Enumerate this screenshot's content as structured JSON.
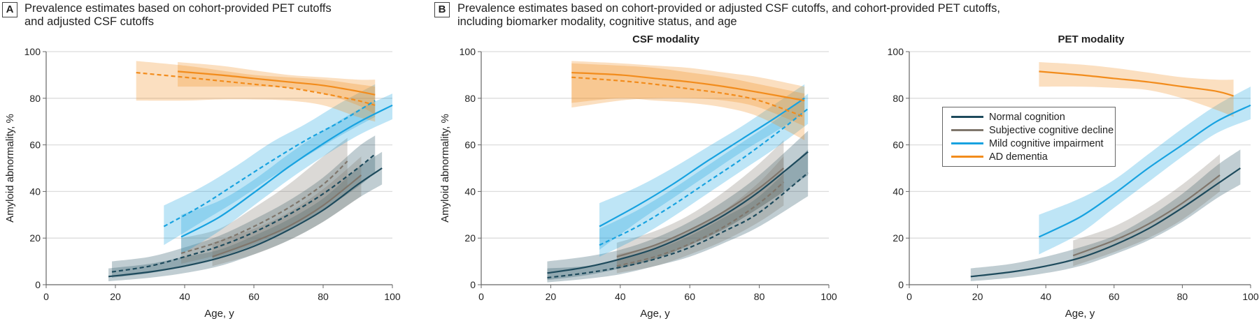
{
  "panels": {
    "a": {
      "letter": "A",
      "title_line1": "Prevalence estimates based on cohort-provided PET cutoffs",
      "title_line2": "and adjusted CSF cutoffs"
    },
    "b": {
      "letter": "B",
      "title_line1": "Prevalence estimates based on cohort-provided or adjusted CSF cutoffs, and cohort-provided PET cutoffs,",
      "title_line2": "including biomarker modality, cognitive status, and age",
      "csf_title": "CSF modality",
      "pet_title": "PET modality"
    }
  },
  "legend": [
    {
      "label": "Normal cognition",
      "color": "#1d4a5c"
    },
    {
      "label": "Subjective cognitive decline",
      "color": "#7f766c"
    },
    {
      "label": "Mild cognitive impairment",
      "color": "#17a2e0"
    },
    {
      "label": "AD dementia",
      "color": "#f28c1c"
    }
  ],
  "chart_data": [
    {
      "type": "line",
      "id": "A",
      "title": "",
      "xlabel": "Age, y",
      "ylabel": "Amyloid abnormality, %",
      "xlim": [
        0,
        100
      ],
      "ylim": [
        0,
        100
      ],
      "xticks": [
        "0",
        "20",
        "40",
        "60",
        "80",
        "100"
      ],
      "yticks": [
        "0",
        "20",
        "40",
        "60",
        "80",
        "100"
      ],
      "grid": true,
      "series": [
        {
          "name": "Normal cognition",
          "style": "solid",
          "x": [
            18,
            30,
            40,
            50,
            60,
            70,
            80,
            90,
            97
          ],
          "y": [
            3.5,
            5.5,
            8,
            11.5,
            16.5,
            23.5,
            32,
            43,
            50
          ],
          "lo": [
            1.5,
            3,
            5,
            8,
            13,
            19,
            27,
            37,
            43
          ],
          "hi": [
            7,
            9,
            12,
            15,
            21,
            28,
            37,
            50,
            57
          ]
        },
        {
          "name": "Normal cognition",
          "style": "dashed",
          "x": [
            19,
            30,
            40,
            50,
            60,
            70,
            80,
            90,
            95
          ],
          "y": [
            5.5,
            8,
            12,
            16.5,
            22.5,
            30,
            39,
            50,
            56
          ],
          "lo": [
            3,
            5,
            8,
            12,
            17,
            24,
            32,
            42,
            48
          ],
          "hi": [
            10,
            12,
            16,
            21,
            28,
            36,
            46,
            59,
            64
          ]
        },
        {
          "name": "Subjective cognitive decline",
          "style": "solid",
          "x": [
            48,
            60,
            70,
            80,
            91
          ],
          "y": [
            12,
            18.5,
            25,
            34,
            47
          ],
          "lo": [
            8,
            13,
            19,
            27,
            38
          ],
          "hi": [
            18,
            24,
            31,
            41,
            55
          ]
        },
        {
          "name": "Subjective cognitive decline",
          "style": "dashed",
          "x": [
            39,
            50,
            60,
            70,
            80,
            87
          ],
          "y": [
            13.5,
            18.5,
            25,
            33,
            43,
            53
          ],
          "lo": [
            9,
            13,
            18,
            25,
            34,
            42
          ],
          "hi": [
            20,
            24,
            33,
            43,
            55,
            63
          ]
        },
        {
          "name": "Mild cognitive impairment",
          "style": "solid",
          "x": [
            39,
            50,
            60,
            70,
            80,
            90,
            100
          ],
          "y": [
            20.5,
            29,
            39.5,
            50.5,
            60.5,
            69.5,
            77
          ],
          "lo": [
            13,
            23,
            34,
            45,
            55,
            64,
            71
          ],
          "hi": [
            30,
            36,
            45,
            56,
            66,
            75,
            82
          ]
        },
        {
          "name": "Mild cognitive impairment",
          "style": "dashed",
          "x": [
            34,
            45,
            55,
            65,
            75,
            85,
            95
          ],
          "y": [
            25,
            34,
            43.5,
            53,
            62,
            70,
            79
          ],
          "lo": [
            17,
            27,
            36,
            46,
            55,
            64,
            72
          ],
          "hi": [
            34,
            42,
            51,
            61,
            69,
            78,
            86
          ]
        },
        {
          "name": "AD dementia",
          "style": "solid",
          "x": [
            38,
            50,
            60,
            70,
            80,
            90,
            95
          ],
          "y": [
            91.5,
            90,
            88.5,
            87,
            85.5,
            83,
            81.5
          ],
          "lo": [
            85,
            85,
            85,
            84.5,
            82,
            77,
            73
          ],
          "hi": [
            95.5,
            94,
            92,
            90,
            89,
            88,
            88
          ]
        },
        {
          "name": "AD dementia",
          "style": "dashed",
          "x": [
            26,
            40,
            50,
            60,
            70,
            80,
            90,
            95
          ],
          "y": [
            91,
            89,
            87.5,
            86,
            84.5,
            82,
            79,
            77
          ],
          "lo": [
            79,
            79,
            79.5,
            79.5,
            79,
            77,
            72,
            70
          ],
          "hi": [
            96,
            94,
            92,
            90,
            89,
            88,
            86,
            85
          ]
        }
      ]
    },
    {
      "type": "line",
      "id": "B-CSF",
      "title": "CSF modality",
      "xlabel": "Age, y",
      "ylabel": "Amyloid abnormality, %",
      "xlim": [
        0,
        100
      ],
      "ylim": [
        0,
        100
      ],
      "xticks": [
        "0",
        "20",
        "40",
        "60",
        "80",
        "100"
      ],
      "yticks": [
        "0",
        "20",
        "40",
        "60",
        "80",
        "100"
      ],
      "grid": true,
      "series": [
        {
          "name": "Normal cognition",
          "style": "solid",
          "x": [
            19,
            30,
            40,
            50,
            60,
            70,
            80,
            94
          ],
          "y": [
            5,
            7.5,
            11,
            15.5,
            22,
            30,
            40,
            57
          ],
          "lo": [
            2,
            4,
            7,
            11,
            17,
            24,
            33,
            47
          ],
          "hi": [
            10,
            12,
            15,
            20,
            27,
            36,
            47,
            66
          ]
        },
        {
          "name": "Normal cognition",
          "style": "dashed",
          "x": [
            19,
            30,
            40,
            50,
            60,
            70,
            80,
            94
          ],
          "y": [
            3,
            5,
            7.5,
            11,
            16,
            23,
            31,
            48
          ],
          "lo": [
            1,
            2.5,
            4.5,
            8,
            12,
            18,
            25,
            38
          ],
          "hi": [
            7,
            8,
            11,
            15,
            21,
            29,
            38,
            58
          ]
        },
        {
          "name": "Subjective cognitive decline",
          "style": "solid",
          "x": [
            39,
            50,
            60,
            70,
            80,
            87
          ],
          "y": [
            12,
            17,
            23.5,
            31.5,
            41.5,
            50
          ],
          "lo": [
            7,
            11,
            17,
            24,
            33,
            40
          ],
          "hi": [
            18,
            23,
            30,
            40,
            52,
            62
          ]
        },
        {
          "name": "Subjective cognitive decline",
          "style": "dashed",
          "x": [
            39,
            50,
            60,
            70,
            80,
            87
          ],
          "y": [
            8,
            12,
            17.5,
            25,
            35,
            44
          ],
          "lo": [
            5,
            8,
            13,
            19,
            27,
            34
          ],
          "hi": [
            13,
            17,
            23,
            32,
            44,
            55
          ]
        },
        {
          "name": "Mild cognitive impairment",
          "style": "solid",
          "x": [
            34,
            45,
            55,
            65,
            75,
            85,
            93
          ],
          "y": [
            25,
            34,
            43,
            53,
            62.5,
            72,
            80
          ],
          "lo": [
            15,
            27,
            37,
            47,
            57,
            66,
            74
          ],
          "hi": [
            35,
            42,
            50,
            59,
            68,
            78,
            86
          ]
        },
        {
          "name": "Mild cognitive impairment",
          "style": "dashed",
          "x": [
            34,
            45,
            55,
            65,
            75,
            85,
            94
          ],
          "y": [
            17,
            25,
            34,
            44,
            54,
            65,
            75.5
          ],
          "lo": [
            12,
            20,
            29,
            39,
            49,
            59,
            69
          ],
          "hi": [
            24,
            32,
            41,
            51,
            61,
            71,
            82
          ]
        },
        {
          "name": "AD dementia",
          "style": "solid",
          "x": [
            26,
            40,
            50,
            60,
            70,
            80,
            93
          ],
          "y": [
            91,
            90,
            88.5,
            87,
            85,
            82.5,
            79
          ],
          "lo": [
            76,
            79,
            80,
            80,
            79,
            76,
            68
          ],
          "hi": [
            96,
            95,
            94,
            93,
            91,
            89,
            85
          ]
        },
        {
          "name": "AD dementia",
          "style": "dashed",
          "x": [
            26,
            40,
            50,
            60,
            70,
            80,
            93
          ],
          "y": [
            89,
            87.5,
            86,
            84,
            82,
            79,
            72
          ],
          "lo": [
            78,
            80,
            79,
            78,
            76,
            72,
            62
          ],
          "hi": [
            95,
            94,
            93,
            91,
            89,
            86,
            82
          ]
        }
      ]
    },
    {
      "type": "line",
      "id": "B-PET",
      "title": "PET modality",
      "xlabel": "Age, y",
      "ylabel": "",
      "xlim": [
        0,
        100
      ],
      "ylim": [
        0,
        100
      ],
      "xticks": [
        "0",
        "20",
        "40",
        "60",
        "80",
        "100"
      ],
      "yticks": [
        "0",
        "20",
        "40",
        "60",
        "80",
        "100"
      ],
      "grid": true,
      "legend_position": "upper-left",
      "series": [
        {
          "name": "Normal cognition",
          "style": "solid",
          "x": [
            18,
            30,
            40,
            50,
            60,
            70,
            80,
            90,
            97
          ],
          "y": [
            3.5,
            5.5,
            8,
            11.5,
            17,
            24,
            33,
            43,
            50
          ],
          "lo": [
            1.5,
            3,
            5,
            8,
            13,
            19,
            27,
            37,
            43
          ],
          "hi": [
            7,
            9,
            12,
            16,
            21,
            29,
            39,
            51,
            58
          ]
        },
        {
          "name": "Subjective cognitive decline",
          "style": "solid",
          "x": [
            48,
            60,
            70,
            80,
            91
          ],
          "y": [
            12.5,
            19,
            26,
            35,
            47
          ],
          "lo": [
            8,
            14,
            20,
            28,
            40
          ],
          "hi": [
            19,
            25,
            33,
            43,
            56
          ]
        },
        {
          "name": "Mild cognitive impairment",
          "style": "solid",
          "x": [
            38,
            50,
            60,
            70,
            80,
            90,
            100
          ],
          "y": [
            20.5,
            29,
            39,
            50,
            60,
            70,
            77
          ],
          "lo": [
            13,
            22,
            33,
            44,
            55,
            65,
            71
          ],
          "hi": [
            30,
            37,
            45,
            56,
            67,
            77,
            85
          ]
        },
        {
          "name": "AD dementia",
          "style": "solid",
          "x": [
            38,
            50,
            60,
            70,
            80,
            90,
            95
          ],
          "y": [
            91.5,
            90,
            88.5,
            87,
            85,
            83,
            81
          ],
          "lo": [
            85,
            85,
            84.5,
            83.5,
            80,
            75,
            72
          ],
          "hi": [
            95.5,
            94.5,
            93,
            91,
            89,
            88,
            88
          ]
        }
      ]
    }
  ]
}
